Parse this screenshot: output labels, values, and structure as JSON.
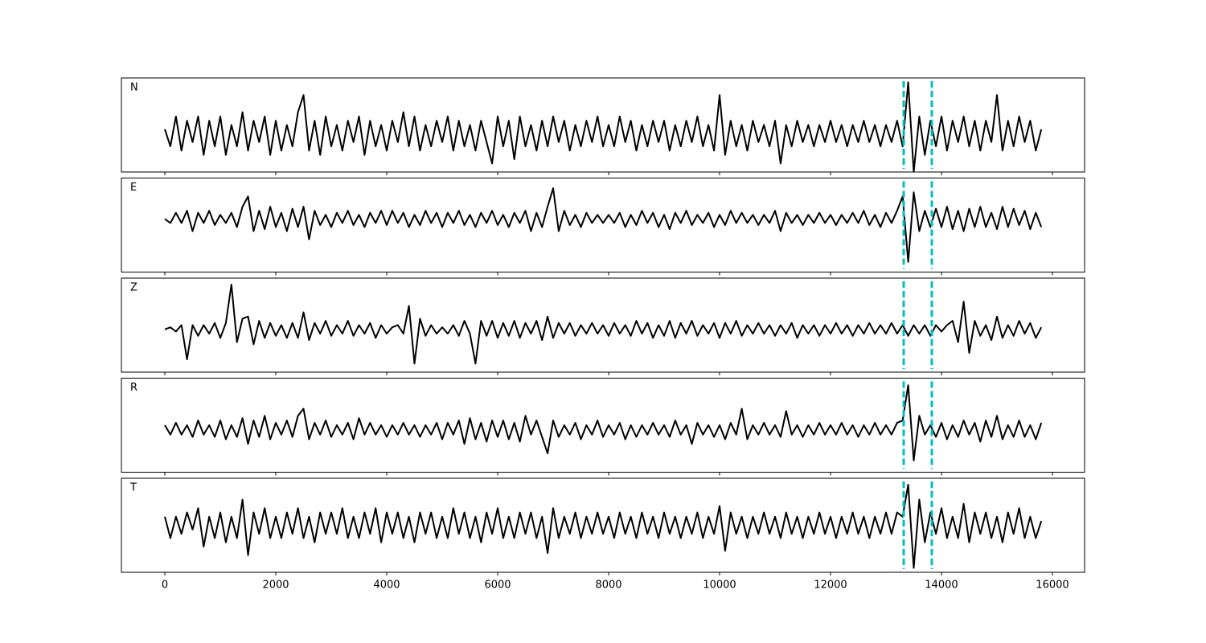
{
  "chart_data": {
    "type": "line",
    "layout": "stacked",
    "x": [
      0,
      100,
      200,
      300,
      400,
      500,
      600,
      700,
      800,
      900,
      1000,
      1100,
      1200,
      1300,
      1400,
      1500,
      1600,
      1700,
      1800,
      1900,
      2000,
      2100,
      2200,
      2300,
      2400,
      2500,
      2600,
      2700,
      2800,
      2900,
      3000,
      3100,
      3200,
      3300,
      3400,
      3500,
      3600,
      3700,
      3800,
      3900,
      4000,
      4100,
      4200,
      4300,
      4400,
      4500,
      4600,
      4700,
      4800,
      4900,
      5000,
      5100,
      5200,
      5300,
      5400,
      5500,
      5600,
      5700,
      5800,
      5900,
      6000,
      6100,
      6200,
      6300,
      6400,
      6500,
      6600,
      6700,
      6800,
      6900,
      7000,
      7100,
      7200,
      7300,
      7400,
      7500,
      7600,
      7700,
      7800,
      7900,
      8000,
      8100,
      8200,
      8300,
      8400,
      8500,
      8600,
      8700,
      8800,
      8900,
      9000,
      9100,
      9200,
      9300,
      9400,
      9500,
      9600,
      9700,
      9800,
      9900,
      10000,
      10100,
      10200,
      10300,
      10400,
      10500,
      10600,
      10700,
      10800,
      10900,
      11000,
      11100,
      11200,
      11300,
      11400,
      11500,
      11600,
      11700,
      11800,
      11900,
      12000,
      12100,
      12200,
      12300,
      12400,
      12500,
      12600,
      12700,
      12800,
      12900,
      13000,
      13100,
      13200,
      13300,
      13400,
      13500,
      13600,
      13700,
      13800,
      13900,
      14000,
      14100,
      14200,
      14300,
      14400,
      14500,
      14600,
      14700,
      14800,
      14900,
      15000,
      15100,
      15200,
      15300,
      15400,
      15500,
      15600,
      15700,
      15800
    ],
    "xlim": [
      -783,
      16580
    ],
    "xticks": [
      0,
      2000,
      4000,
      6000,
      8000,
      10000,
      12000,
      14000,
      16000
    ],
    "vlines": [
      13319,
      13826
    ],
    "vline_color": "#00bfbf",
    "series": [
      {
        "name": "N",
        "color": "#000000",
        "ylim": [
          -0.9,
          1.3
        ],
        "values": [
          0.1,
          -0.3,
          0.4,
          -0.4,
          0.3,
          -0.2,
          0.4,
          -0.5,
          0.3,
          -0.3,
          0.4,
          -0.5,
          0.2,
          -0.3,
          0.5,
          -0.4,
          0.3,
          -0.2,
          0.4,
          -0.5,
          0.3,
          -0.4,
          0.2,
          -0.3,
          0.5,
          0.9,
          -0.4,
          0.3,
          -0.5,
          0.4,
          -0.3,
          0.2,
          -0.4,
          0.3,
          -0.2,
          0.4,
          -0.5,
          0.3,
          -0.3,
          0.2,
          -0.4,
          0.3,
          -0.2,
          0.5,
          -0.3,
          0.4,
          -0.4,
          0.2,
          -0.3,
          0.3,
          -0.2,
          0.4,
          -0.4,
          0.3,
          -0.3,
          0.2,
          -0.4,
          0.3,
          -0.2,
          -0.7,
          0.4,
          -0.3,
          0.3,
          -0.6,
          0.4,
          -0.3,
          0.2,
          -0.4,
          0.3,
          -0.3,
          0.4,
          -0.2,
          0.3,
          -0.4,
          0.2,
          -0.3,
          0.3,
          -0.2,
          0.4,
          -0.3,
          0.2,
          -0.3,
          0.4,
          -0.2,
          0.3,
          -0.4,
          0.2,
          -0.3,
          0.3,
          -0.2,
          0.3,
          -0.4,
          0.2,
          -0.3,
          0.3,
          -0.2,
          0.4,
          -0.3,
          0.2,
          -0.4,
          0.9,
          -0.5,
          0.3,
          -0.3,
          0.2,
          -0.4,
          0.3,
          -0.2,
          0.2,
          -0.3,
          0.3,
          -0.7,
          0.2,
          -0.3,
          0.3,
          -0.2,
          0.2,
          -0.3,
          0.2,
          -0.2,
          0.3,
          -0.2,
          0.2,
          -0.3,
          0.2,
          -0.2,
          0.3,
          -0.2,
          0.2,
          -0.3,
          0.2,
          -0.2,
          0.3,
          -0.3,
          1.2,
          -0.9,
          0.4,
          -0.5,
          0.3,
          -0.3,
          0.4,
          -0.4,
          0.3,
          -0.2,
          0.4,
          -0.3,
          0.3,
          -0.4,
          0.3,
          -0.2,
          0.9,
          -0.4,
          0.3,
          -0.3,
          0.4,
          -0.2,
          0.3,
          -0.4,
          0.1
        ]
      },
      {
        "name": "E",
        "color": "#000000",
        "ylim": [
          -1.3,
          1.0
        ],
        "values": [
          0.0,
          -0.1,
          0.15,
          -0.1,
          0.2,
          -0.3,
          0.15,
          -0.1,
          0.2,
          -0.15,
          0.1,
          -0.1,
          0.15,
          -0.2,
          0.3,
          0.55,
          -0.3,
          0.2,
          -0.25,
          0.3,
          -0.2,
          0.15,
          -0.3,
          0.25,
          -0.2,
          0.3,
          -0.5,
          0.2,
          -0.15,
          0.1,
          -0.2,
          0.15,
          -0.1,
          0.2,
          -0.15,
          0.1,
          -0.2,
          0.15,
          -0.1,
          0.2,
          -0.15,
          0.2,
          -0.1,
          0.15,
          -0.2,
          0.1,
          -0.15,
          0.2,
          -0.1,
          0.15,
          -0.2,
          0.15,
          -0.1,
          0.2,
          -0.15,
          0.1,
          -0.2,
          0.15,
          -0.1,
          0.2,
          -0.15,
          0.1,
          -0.2,
          0.15,
          -0.1,
          0.2,
          -0.3,
          0.15,
          -0.2,
          0.3,
          0.75,
          -0.3,
          0.2,
          -0.15,
          0.1,
          -0.2,
          0.15,
          -0.1,
          0.1,
          -0.1,
          0.1,
          -0.1,
          0.15,
          -0.2,
          0.1,
          -0.15,
          0.2,
          -0.1,
          0.15,
          -0.2,
          0.1,
          -0.25,
          0.15,
          -0.1,
          0.2,
          -0.15,
          0.1,
          -0.1,
          0.15,
          -0.2,
          0.1,
          -0.15,
          0.2,
          -0.1,
          0.15,
          -0.1,
          0.1,
          -0.15,
          0.1,
          -0.1,
          0.2,
          -0.3,
          0.15,
          -0.1,
          0.1,
          -0.15,
          0.1,
          -0.1,
          0.15,
          -0.1,
          0.1,
          -0.15,
          0.1,
          -0.1,
          0.15,
          -0.1,
          0.2,
          -0.15,
          0.1,
          -0.2,
          0.15,
          -0.1,
          0.2,
          0.55,
          -1.05,
          0.65,
          -0.3,
          0.2,
          -0.2,
          0.25,
          -0.2,
          0.3,
          -0.25,
          0.2,
          -0.3,
          0.25,
          -0.2,
          0.3,
          -0.2,
          0.15,
          -0.25,
          0.3,
          -0.2,
          0.25,
          -0.15,
          0.2,
          -0.25,
          0.15,
          -0.2
        ]
      },
      {
        "name": "Z",
        "color": "#000000",
        "ylim": [
          -1.0,
          1.2
        ],
        "values": [
          0.0,
          0.05,
          -0.05,
          0.1,
          -0.7,
          0.1,
          -0.15,
          0.1,
          -0.1,
          0.15,
          -0.2,
          0.15,
          1.05,
          -0.3,
          0.25,
          0.3,
          -0.35,
          0.2,
          -0.2,
          0.15,
          -0.15,
          0.1,
          -0.2,
          0.15,
          -0.2,
          0.4,
          -0.25,
          0.15,
          -0.1,
          0.2,
          -0.15,
          0.1,
          -0.1,
          0.2,
          -0.15,
          0.1,
          -0.1,
          0.15,
          -0.2,
          0.1,
          -0.1,
          0.05,
          0.1,
          -0.1,
          0.55,
          -0.8,
          0.25,
          -0.15,
          0.1,
          -0.1,
          0.05,
          -0.1,
          0.1,
          -0.15,
          0.2,
          -0.1,
          -0.8,
          0.2,
          -0.15,
          0.2,
          -0.2,
          0.15,
          -0.15,
          0.2,
          -0.2,
          0.15,
          -0.1,
          0.2,
          -0.25,
          0.3,
          -0.2,
          0.15,
          -0.1,
          0.15,
          -0.15,
          0.1,
          -0.1,
          0.15,
          -0.1,
          0.1,
          -0.15,
          0.15,
          -0.1,
          0.1,
          -0.15,
          0.2,
          -0.1,
          0.15,
          -0.2,
          0.1,
          -0.15,
          0.2,
          -0.2,
          0.15,
          -0.1,
          0.2,
          -0.15,
          0.1,
          -0.1,
          0.15,
          -0.2,
          0.15,
          -0.1,
          0.2,
          -0.15,
          0.1,
          -0.1,
          0.15,
          -0.1,
          0.1,
          -0.15,
          0.1,
          -0.1,
          0.15,
          -0.2,
          0.1,
          -0.1,
          0.1,
          -0.15,
          0.1,
          -0.1,
          0.15,
          -0.1,
          0.1,
          -0.15,
          0.1,
          -0.1,
          0.15,
          -0.1,
          0.1,
          -0.1,
          0.15,
          -0.1,
          0.1,
          -0.15,
          0.1,
          -0.1,
          0.1,
          -0.15,
          0.1,
          -0.05,
          0.1,
          0.2,
          -0.3,
          0.65,
          -0.55,
          0.2,
          -0.15,
          0.1,
          -0.25,
          0.3,
          -0.2,
          0.1,
          -0.15,
          0.2,
          -0.1,
          0.15,
          -0.2,
          0.05
        ]
      },
      {
        "name": "R",
        "color": "#000000",
        "ylim": [
          -0.9,
          1.1
        ],
        "values": [
          0.1,
          -0.1,
          0.15,
          -0.1,
          0.1,
          -0.15,
          0.2,
          -0.1,
          0.1,
          -0.15,
          0.2,
          -0.2,
          0.1,
          -0.15,
          0.25,
          -0.3,
          0.2,
          -0.15,
          0.3,
          -0.2,
          0.15,
          -0.1,
          0.2,
          -0.15,
          0.3,
          0.45,
          -0.2,
          0.15,
          -0.1,
          0.2,
          -0.15,
          0.1,
          -0.1,
          0.15,
          -0.2,
          0.25,
          -0.1,
          0.15,
          -0.1,
          0.1,
          -0.15,
          0.1,
          -0.1,
          0.15,
          -0.1,
          0.1,
          -0.15,
          0.1,
          -0.1,
          0.15,
          -0.2,
          0.15,
          -0.1,
          0.2,
          -0.3,
          0.25,
          -0.2,
          0.15,
          -0.25,
          0.2,
          -0.15,
          0.2,
          -0.2,
          0.15,
          -0.25,
          0.3,
          -0.1,
          0.2,
          -0.15,
          -0.5,
          0.2,
          -0.15,
          0.1,
          -0.1,
          0.15,
          -0.2,
          0.1,
          -0.1,
          0.2,
          -0.15,
          0.1,
          -0.1,
          0.15,
          -0.2,
          0.1,
          -0.15,
          0.1,
          -0.1,
          0.15,
          -0.1,
          0.1,
          -0.15,
          0.2,
          -0.1,
          0.1,
          -0.3,
          0.15,
          -0.1,
          0.1,
          -0.15,
          0.1,
          -0.2,
          0.15,
          -0.1,
          0.45,
          -0.2,
          0.1,
          -0.1,
          0.15,
          -0.1,
          0.1,
          -0.15,
          0.4,
          -0.1,
          0.1,
          -0.15,
          0.1,
          -0.1,
          0.15,
          -0.1,
          0.1,
          -0.1,
          0.15,
          -0.1,
          0.1,
          -0.15,
          0.1,
          -0.1,
          0.15,
          -0.1,
          0.1,
          -0.1,
          0.15,
          0.2,
          0.95,
          -0.65,
          0.3,
          -0.1,
          0.1,
          -0.15,
          0.15,
          -0.2,
          0.1,
          -0.15,
          0.2,
          -0.1,
          0.15,
          -0.25,
          0.2,
          -0.15,
          0.3,
          -0.2,
          0.1,
          -0.15,
          0.2,
          -0.15,
          0.1,
          -0.2,
          0.15
        ]
      },
      {
        "name": "T",
        "color": "#000000",
        "ylim": [
          -1.1,
          1.1
        ],
        "values": [
          0.2,
          -0.3,
          0.2,
          -0.2,
          0.3,
          -0.1,
          0.4,
          -0.5,
          0.2,
          -0.3,
          0.3,
          -0.4,
          0.2,
          -0.3,
          0.6,
          -0.7,
          0.3,
          -0.2,
          0.4,
          -0.3,
          0.2,
          -0.3,
          0.3,
          -0.2,
          0.4,
          -0.3,
          0.2,
          -0.4,
          0.3,
          -0.2,
          0.3,
          -0.2,
          0.4,
          -0.3,
          0.2,
          -0.3,
          0.3,
          -0.2,
          0.4,
          -0.4,
          0.3,
          -0.2,
          0.3,
          -0.3,
          0.2,
          -0.4,
          0.3,
          -0.2,
          0.3,
          -0.3,
          0.2,
          -0.3,
          0.4,
          -0.2,
          0.3,
          -0.3,
          0.2,
          -0.4,
          0.3,
          -0.2,
          0.4,
          -0.3,
          0.2,
          -0.3,
          0.3,
          -0.2,
          0.3,
          -0.3,
          0.2,
          -0.65,
          0.4,
          -0.3,
          0.2,
          -0.2,
          0.3,
          -0.3,
          0.2,
          -0.2,
          0.3,
          -0.2,
          0.2,
          -0.3,
          0.3,
          -0.2,
          0.2,
          -0.3,
          0.3,
          -0.2,
          0.2,
          -0.3,
          0.3,
          -0.2,
          0.2,
          -0.3,
          0.2,
          -0.2,
          0.3,
          -0.3,
          0.2,
          -0.2,
          0.45,
          -0.6,
          0.3,
          -0.2,
          0.2,
          -0.3,
          0.2,
          -0.2,
          0.3,
          -0.2,
          0.2,
          -0.3,
          0.3,
          -0.2,
          0.2,
          -0.3,
          0.2,
          -0.2,
          0.3,
          -0.2,
          0.2,
          -0.3,
          0.2,
          -0.2,
          0.3,
          -0.2,
          0.2,
          -0.3,
          0.2,
          -0.2,
          0.3,
          -0.2,
          0.3,
          0.2,
          0.95,
          -1.0,
          0.6,
          -0.4,
          0.3,
          -0.2,
          0.4,
          -0.3,
          0.2,
          -0.3,
          0.5,
          -0.4,
          0.3,
          -0.2,
          0.3,
          -0.3,
          0.2,
          -0.4,
          0.3,
          -0.2,
          0.4,
          -0.3,
          0.2,
          -0.3,
          0.1
        ]
      }
    ]
  }
}
